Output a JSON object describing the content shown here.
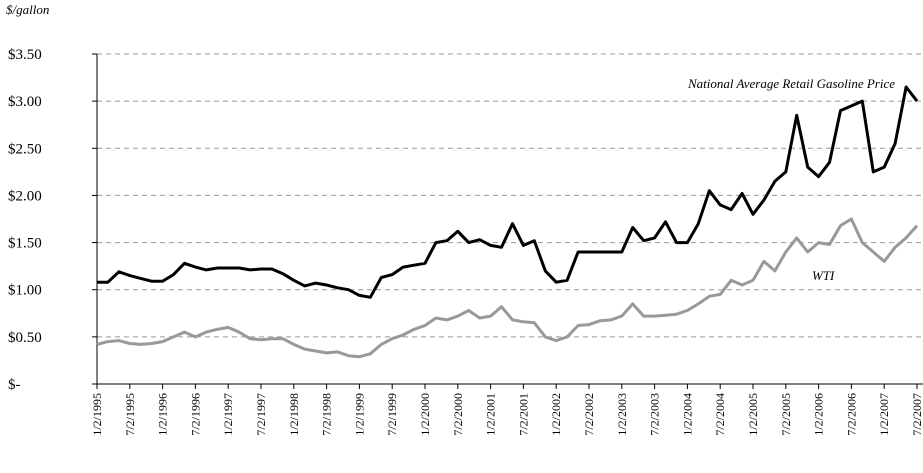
{
  "chart_data": {
    "type": "line",
    "ylabel": "$/gallon",
    "annotations": [
      "National Average Retail Gasoline Price",
      "WTI"
    ],
    "categories": [
      "1/2/1995",
      null,
      null,
      "7/2/1995",
      null,
      null,
      "1/2/1996",
      null,
      null,
      "7/2/1996",
      null,
      null,
      "1/2/1997",
      null,
      null,
      "7/2/1997",
      null,
      null,
      "1/2/1998",
      null,
      null,
      "7/2/1998",
      null,
      null,
      "1/2/1999",
      null,
      null,
      "7/2/1999",
      null,
      null,
      "1/2/2000",
      null,
      null,
      "7/2/2000",
      null,
      null,
      "1/2/2001",
      null,
      null,
      "7/2/2001",
      null,
      null,
      "1/2/2002",
      null,
      null,
      "7/2/2002",
      null,
      null,
      "1/2/2003",
      null,
      null,
      "7/2/2003",
      null,
      null,
      "1/2/2004",
      null,
      null,
      "7/2/2004",
      null,
      null,
      "1/2/2005",
      null,
      null,
      "7/2/2005",
      null,
      null,
      "1/2/2006",
      null,
      null,
      "7/2/2006",
      null,
      null,
      "1/2/2007",
      null,
      null,
      "7/2/2007"
    ],
    "series": [
      {
        "name": "National Average Retail Gasoline Price",
        "color": "#000000",
        "values": [
          1.08,
          1.08,
          1.19,
          1.15,
          1.12,
          1.09,
          1.09,
          1.16,
          1.28,
          1.24,
          1.21,
          1.23,
          1.23,
          1.23,
          1.21,
          1.22,
          1.22,
          1.17,
          1.1,
          1.04,
          1.07,
          1.05,
          1.02,
          1.0,
          0.94,
          0.92,
          1.13,
          1.16,
          1.24,
          1.26,
          1.28,
          1.5,
          1.52,
          1.62,
          1.5,
          1.53,
          1.47,
          1.45,
          1.7,
          1.47,
          1.52,
          1.2,
          1.08,
          1.1,
          1.4,
          1.4,
          1.4,
          1.4,
          1.4,
          1.66,
          1.52,
          1.55,
          1.72,
          1.5,
          1.5,
          1.7,
          2.05,
          1.9,
          1.85,
          2.02,
          1.8,
          1.95,
          2.15,
          2.25,
          2.85,
          2.3,
          2.2,
          2.35,
          2.9,
          2.95,
          3.0,
          2.25,
          2.3,
          2.55,
          3.15,
          3.0
        ]
      },
      {
        "name": "WTI",
        "color": "#999999",
        "values": [
          0.42,
          0.45,
          0.46,
          0.43,
          0.42,
          0.43,
          0.45,
          0.5,
          0.55,
          0.5,
          0.55,
          0.58,
          0.6,
          0.55,
          0.48,
          0.47,
          0.48,
          0.48,
          0.42,
          0.37,
          0.35,
          0.33,
          0.34,
          0.3,
          0.29,
          0.32,
          0.42,
          0.48,
          0.52,
          0.58,
          0.62,
          0.7,
          0.68,
          0.72,
          0.78,
          0.7,
          0.72,
          0.82,
          0.68,
          0.66,
          0.65,
          0.5,
          0.46,
          0.5,
          0.62,
          0.63,
          0.67,
          0.68,
          0.72,
          0.85,
          0.72,
          0.72,
          0.73,
          0.74,
          0.78,
          0.85,
          0.93,
          0.95,
          1.1,
          1.05,
          1.1,
          1.3,
          1.2,
          1.4,
          1.55,
          1.4,
          1.5,
          1.48,
          1.68,
          1.75,
          1.5,
          1.4,
          1.3,
          1.45,
          1.55,
          1.68
        ]
      }
    ],
    "ylim": [
      0,
      3.5
    ],
    "yticks": [
      {
        "value": 0,
        "label": "$-"
      },
      {
        "value": 0.5,
        "label": "$0.50"
      },
      {
        "value": 1,
        "label": "$1.00"
      },
      {
        "value": 1.5,
        "label": "$1.50"
      },
      {
        "value": 2,
        "label": "$2.00"
      },
      {
        "value": 2.5,
        "label": "$2.50"
      },
      {
        "value": 3,
        "label": "$3.00"
      },
      {
        "value": 3.5,
        "label": "$3.50"
      }
    ],
    "grid": true
  }
}
